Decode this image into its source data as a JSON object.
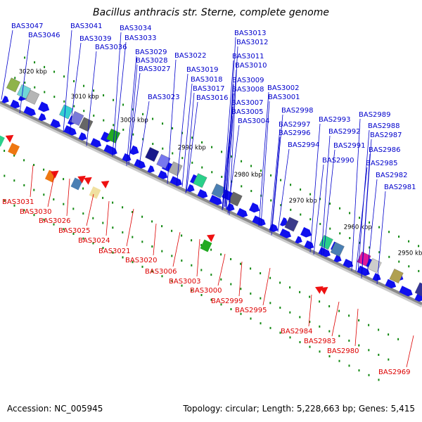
{
  "title": "Bacillus anthracis str. Sterne, complete genome",
  "footer": {
    "accession": "Accession: NC_005945",
    "info": "Topology: circular; Length: 5,228,663 bp; Genes: 5,415"
  },
  "colors": {
    "forward_label": "#0000cc",
    "reverse_label": "#dd0000",
    "forward_arrow": "#1010ee",
    "reverse_arrow": "#ee1111",
    "backbone": "#888888",
    "dots": "#118811"
  },
  "ticks": [
    "3020 kbp",
    "3010 kbp",
    "3000 kbp",
    "2990 kbp",
    "2980 kbp",
    "2970 kbp",
    "2960 kbp",
    "2950 kbp"
  ],
  "forward_labels": [
    "BAS3047",
    "BAS3046",
    "BAS3041",
    "BAS3039",
    "BAS3036",
    "BAS3034",
    "BAS3033",
    "BAS3029",
    "BAS3028",
    "BAS3027",
    "BAS3023",
    "BAS3022",
    "BAS3019",
    "BAS3018",
    "BAS3017",
    "BAS3016",
    "BAS3013",
    "BAS3012",
    "BAS3011",
    "BAS3010",
    "BAS3009",
    "BAS3008",
    "BAS3007",
    "BAS3005",
    "BAS3004",
    "BAS3002",
    "BAS3001",
    "BAS2998",
    "BAS2997",
    "BAS2996",
    "BAS2994",
    "BAS2993",
    "BAS2992",
    "BAS2991",
    "BAS2990",
    "BAS2989",
    "BAS2988",
    "BAS2987",
    "BAS2986",
    "BAS2985",
    "BAS2982",
    "BAS2981"
  ],
  "reverse_labels": [
    "BAS3031",
    "BAS3030",
    "BAS3026",
    "BAS3025",
    "BAS3024",
    "BAS3021",
    "BAS3020",
    "BAS3006",
    "BAS3003",
    "BAS3000",
    "BAS2999",
    "BAS2995",
    "BAS2984",
    "BAS2983",
    "BAS2980",
    "BAS2969"
  ]
}
